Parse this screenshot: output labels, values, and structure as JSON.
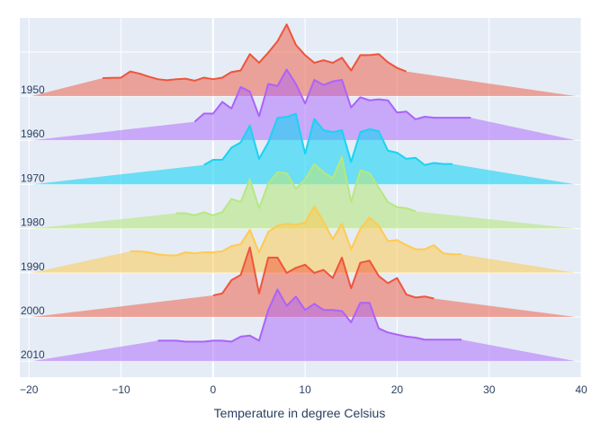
{
  "chart_data": {
    "type": "area",
    "xlabel": "Temperature in degree Celsius",
    "xlim": [
      -21,
      40
    ],
    "xticks": [
      -20,
      -10,
      0,
      10,
      20,
      30,
      40
    ],
    "legend": "none",
    "grid": true,
    "colors": {
      "plot_bg": "#e5ecf6",
      "grid": "#ffffff",
      "text": "#2a3f5f"
    },
    "series": [
      {
        "name": "1950",
        "color": "#ef553b",
        "fill": "rgba(239,85,59,0.5)",
        "points": [
          [
            -12,
            0.35
          ],
          [
            -10,
            0.36
          ],
          [
            -9,
            0.48
          ],
          [
            -8,
            0.44
          ],
          [
            -7,
            0.38
          ],
          [
            -6,
            0.33
          ],
          [
            -5,
            0.31
          ],
          [
            -4,
            0.33
          ],
          [
            -3,
            0.34
          ],
          [
            -2,
            0.3
          ],
          [
            -1,
            0.36
          ],
          [
            0,
            0.33
          ],
          [
            1,
            0.36
          ],
          [
            2,
            0.47
          ],
          [
            3,
            0.5
          ],
          [
            4,
            0.82
          ],
          [
            5,
            0.65
          ],
          [
            6,
            0.85
          ],
          [
            7,
            1.07
          ],
          [
            8,
            1.4
          ],
          [
            9,
            1.0
          ],
          [
            10,
            0.8
          ],
          [
            11,
            0.65
          ],
          [
            12,
            0.7
          ],
          [
            13,
            0.65
          ],
          [
            14,
            0.75
          ],
          [
            15,
            0.5
          ],
          [
            16,
            0.8
          ],
          [
            17,
            0.8
          ],
          [
            18,
            0.82
          ],
          [
            19,
            0.66
          ],
          [
            20,
            0.55
          ],
          [
            21,
            0.48
          ]
        ]
      },
      {
        "name": "1960",
        "color": "#ab63fa",
        "fill": "rgba(171,99,250,0.5)",
        "points": [
          [
            -2,
            0.36
          ],
          [
            -1,
            0.52
          ],
          [
            0,
            0.52
          ],
          [
            1,
            0.75
          ],
          [
            2,
            0.62
          ],
          [
            3,
            1.04
          ],
          [
            4,
            0.95
          ],
          [
            5,
            0.47
          ],
          [
            6,
            1.1
          ],
          [
            7,
            1.06
          ],
          [
            8,
            1.38
          ],
          [
            9,
            1.1
          ],
          [
            10,
            0.72
          ],
          [
            11,
            1.18
          ],
          [
            12,
            1.08
          ],
          [
            13,
            1.15
          ],
          [
            14,
            1.18
          ],
          [
            15,
            0.64
          ],
          [
            16,
            0.84
          ],
          [
            17,
            0.78
          ],
          [
            18,
            0.8
          ],
          [
            19,
            0.78
          ],
          [
            20,
            0.54
          ],
          [
            21,
            0.56
          ],
          [
            22,
            0.41
          ],
          [
            23,
            0.46
          ],
          [
            24,
            0.44
          ],
          [
            25,
            0.44
          ],
          [
            26,
            0.44
          ],
          [
            27,
            0.44
          ],
          [
            28,
            0.44
          ]
        ]
      },
      {
        "name": "1970",
        "color": "#00cc96",
        "stroke": "#19d3f3",
        "fill": "rgba(25,211,243,0.6)",
        "points": [
          [
            -1,
            0.38
          ],
          [
            0,
            0.48
          ],
          [
            1,
            0.48
          ],
          [
            2,
            0.72
          ],
          [
            3,
            0.82
          ],
          [
            4,
            1.15
          ],
          [
            5,
            0.5
          ],
          [
            6,
            0.82
          ],
          [
            7,
            1.3
          ],
          [
            8,
            1.32
          ],
          [
            9,
            1.38
          ],
          [
            10,
            0.6
          ],
          [
            11,
            1.28
          ],
          [
            12,
            1.06
          ],
          [
            13,
            1.02
          ],
          [
            14,
            1.06
          ],
          [
            15,
            0.44
          ],
          [
            16,
            1.02
          ],
          [
            17,
            1.08
          ],
          [
            18,
            1.04
          ],
          [
            19,
            0.66
          ],
          [
            20,
            0.62
          ],
          [
            21,
            0.5
          ],
          [
            22,
            0.52
          ],
          [
            23,
            0.38
          ],
          [
            24,
            0.42
          ],
          [
            25,
            0.4
          ],
          [
            26,
            0.4
          ]
        ]
      },
      {
        "name": "1980",
        "color": "#b6e880",
        "fill": "rgba(182,232,128,0.6)",
        "points": [
          [
            -4,
            0.3
          ],
          [
            -3,
            0.3
          ],
          [
            -2,
            0.26
          ],
          [
            -1,
            0.32
          ],
          [
            0,
            0.26
          ],
          [
            1,
            0.32
          ],
          [
            2,
            0.58
          ],
          [
            3,
            0.52
          ],
          [
            4,
            0.96
          ],
          [
            5,
            0.4
          ],
          [
            6,
            0.88
          ],
          [
            7,
            1.1
          ],
          [
            8,
            1.08
          ],
          [
            9,
            0.78
          ],
          [
            10,
            0.96
          ],
          [
            11,
            1.26
          ],
          [
            12,
            1.1
          ],
          [
            13,
            0.98
          ],
          [
            14,
            1.4
          ],
          [
            15,
            0.52
          ],
          [
            16,
            1.14
          ],
          [
            17,
            1.08
          ],
          [
            18,
            0.8
          ],
          [
            19,
            0.52
          ],
          [
            20,
            0.42
          ],
          [
            21,
            0.4
          ],
          [
            22,
            0.34
          ]
        ]
      },
      {
        "name": "1990",
        "color": "#fecb52",
        "fill": "rgba(254,203,82,0.55)",
        "points": [
          [
            -9,
            0.42
          ],
          [
            -8,
            0.42
          ],
          [
            -7,
            0.4
          ],
          [
            -6,
            0.36
          ],
          [
            -5,
            0.34
          ],
          [
            -4,
            0.34
          ],
          [
            -3,
            0.4
          ],
          [
            -2,
            0.38
          ],
          [
            -1,
            0.4
          ],
          [
            0,
            0.4
          ],
          [
            1,
            0.42
          ],
          [
            2,
            0.52
          ],
          [
            3,
            0.56
          ],
          [
            4,
            0.84
          ],
          [
            5,
            0.4
          ],
          [
            6,
            0.8
          ],
          [
            7,
            0.92
          ],
          [
            8,
            0.96
          ],
          [
            9,
            0.94
          ],
          [
            10,
            0.98
          ],
          [
            11,
            1.3
          ],
          [
            12,
            1.0
          ],
          [
            13,
            0.66
          ],
          [
            14,
            0.96
          ],
          [
            15,
            0.46
          ],
          [
            16,
            0.86
          ],
          [
            17,
            1.08
          ],
          [
            18,
            0.92
          ],
          [
            19,
            0.62
          ],
          [
            20,
            0.64
          ],
          [
            21,
            0.54
          ],
          [
            22,
            0.46
          ],
          [
            23,
            0.46
          ],
          [
            24,
            0.54
          ],
          [
            25,
            0.38
          ],
          [
            26,
            0.36
          ],
          [
            27,
            0.36
          ]
        ]
      },
      {
        "name": "2000",
        "color": "#ef553b",
        "fill": "rgba(239,85,59,0.5)",
        "points": [
          [
            0,
            0.42
          ],
          [
            1,
            0.46
          ],
          [
            2,
            0.72
          ],
          [
            3,
            0.82
          ],
          [
            4,
            1.36
          ],
          [
            5,
            0.46
          ],
          [
            6,
            1.16
          ],
          [
            7,
            1.16
          ],
          [
            8,
            0.86
          ],
          [
            9,
            0.96
          ],
          [
            10,
            1.02
          ],
          [
            11,
            0.86
          ],
          [
            12,
            0.92
          ],
          [
            13,
            0.76
          ],
          [
            14,
            1.16
          ],
          [
            15,
            0.56
          ],
          [
            16,
            1.06
          ],
          [
            17,
            1.1
          ],
          [
            18,
            0.8
          ],
          [
            19,
            0.66
          ],
          [
            20,
            0.76
          ],
          [
            21,
            0.44
          ],
          [
            22,
            0.38
          ],
          [
            23,
            0.4
          ],
          [
            24,
            0.36
          ]
        ]
      },
      {
        "name": "2010",
        "color": "#ab63fa",
        "fill": "rgba(171,99,250,0.5)",
        "points": [
          [
            -6,
            0.4
          ],
          [
            -5,
            0.4
          ],
          [
            -4,
            0.4
          ],
          [
            -3,
            0.38
          ],
          [
            -2,
            0.38
          ],
          [
            -1,
            0.38
          ],
          [
            0,
            0.4
          ],
          [
            1,
            0.4
          ],
          [
            2,
            0.38
          ],
          [
            3,
            0.48
          ],
          [
            4,
            0.5
          ],
          [
            5,
            0.4
          ],
          [
            6,
            1.0
          ],
          [
            7,
            1.4
          ],
          [
            8,
            1.08
          ],
          [
            9,
            1.26
          ],
          [
            10,
            1.0
          ],
          [
            11,
            1.12
          ],
          [
            12,
            1.0
          ],
          [
            13,
            1.0
          ],
          [
            14,
            0.98
          ],
          [
            15,
            0.76
          ],
          [
            16,
            1.14
          ],
          [
            17,
            1.14
          ],
          [
            18,
            0.64
          ],
          [
            19,
            0.56
          ],
          [
            20,
            0.52
          ],
          [
            21,
            0.48
          ],
          [
            22,
            0.46
          ],
          [
            23,
            0.42
          ],
          [
            24,
            0.42
          ],
          [
            25,
            0.42
          ],
          [
            26,
            0.42
          ],
          [
            27,
            0.42
          ]
        ]
      }
    ]
  }
}
